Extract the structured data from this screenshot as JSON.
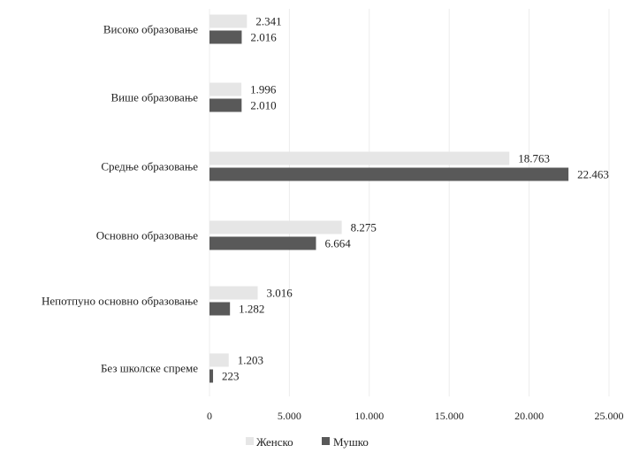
{
  "chart_data": {
    "type": "bar",
    "orientation": "horizontal",
    "categories": [
      "Високо образовање",
      "Више образовање",
      "Средње образовање",
      "Основно образовање",
      "Непотпуно основно образовање",
      "Без школске спреме"
    ],
    "series": [
      {
        "name": "Женско",
        "color": "#e6e6e6",
        "values": [
          2341,
          1996,
          18763,
          8275,
          3016,
          1203
        ],
        "labels": [
          "2.341",
          "1.996",
          "18.763",
          "8.275",
          "3.016",
          "1.203"
        ]
      },
      {
        "name": "Мушко",
        "color": "#595959",
        "values": [
          2016,
          2010,
          22463,
          6664,
          1282,
          223
        ],
        "labels": [
          "2.016",
          "2.010",
          "22.463",
          "6.664",
          "1.282",
          "223"
        ]
      }
    ],
    "xlim": [
      0,
      25000
    ],
    "xticks": [
      0,
      5000,
      10000,
      15000,
      20000,
      25000
    ],
    "xtick_labels": [
      "0",
      "5.000",
      "10.000",
      "15.000",
      "20.000",
      "25.000"
    ],
    "grid": true,
    "legend_position": "bottom"
  }
}
